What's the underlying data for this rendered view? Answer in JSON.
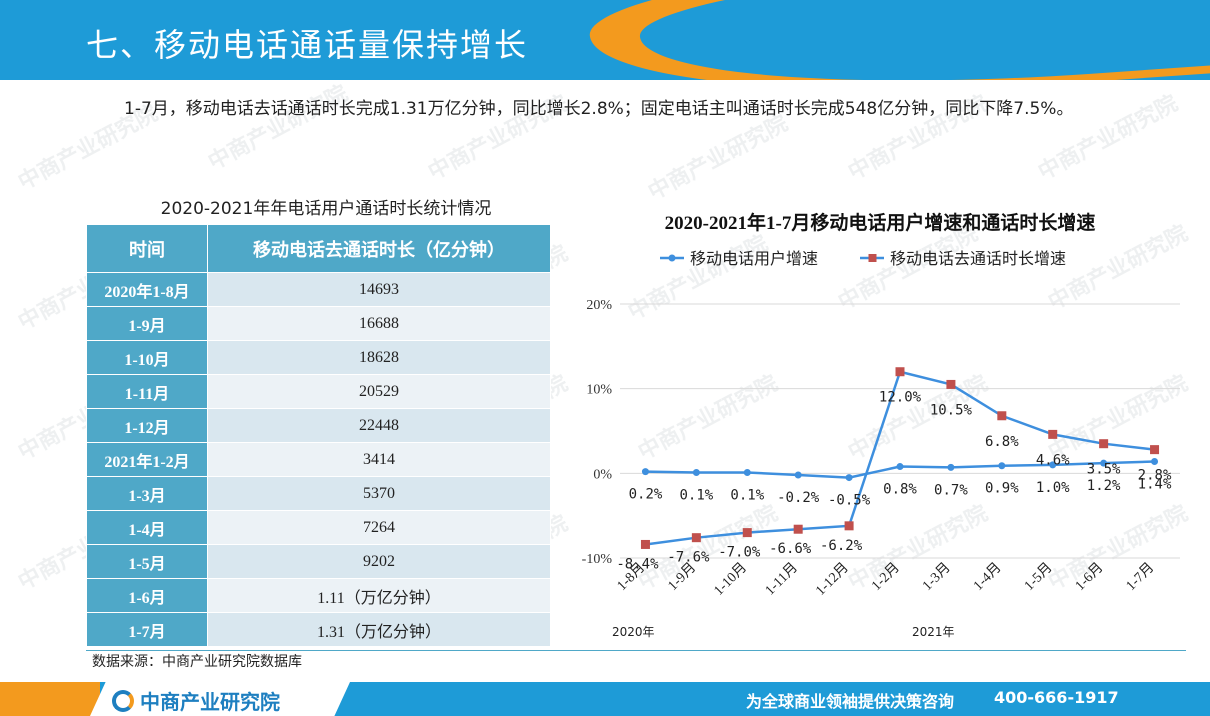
{
  "header": {
    "title": "七、移动电话通话量保持增长"
  },
  "intro": {
    "text": "1-7月，移动电话去话通话时长完成1.31万亿分钟，同比增长2.8%；固定电话主叫通话时长完成548亿分钟，同比下降7.5%。"
  },
  "table": {
    "title": "2020-2021年年电话用户通话时长统计情况",
    "headers": [
      "时间",
      "移动电话去通话时长（亿分钟）"
    ],
    "rows": [
      [
        "2020年1-8月",
        "14693"
      ],
      [
        "1-9月",
        "16688"
      ],
      [
        "1-10月",
        "18628"
      ],
      [
        "1-11月",
        "20529"
      ],
      [
        "1-12月",
        "22448"
      ],
      [
        "2021年1-2月",
        "3414"
      ],
      [
        "1-3月",
        "5370"
      ],
      [
        "1-4月",
        "7264"
      ],
      [
        "1-5月",
        "9202"
      ],
      [
        "1-6月",
        "1.11（万亿分钟）"
      ],
      [
        "1-7月",
        "1.31（万亿分钟）"
      ]
    ]
  },
  "source": "数据来源：中商产业研究院数据库",
  "footer": {
    "logo": "中商产业研究院",
    "slogan": "为全球商业领袖提供决策咨询",
    "phone": "400-666-1917"
  },
  "watermark": "中商产业研究院",
  "chart_data": {
    "type": "line",
    "title": "2020-2021年1-7月移动电话用户增速和通话时长增速",
    "categories": [
      "1-8月",
      "1-9月",
      "1-10月",
      "1-11月",
      "1-12月",
      "1-2月",
      "1-3月",
      "1-4月",
      "1-5月",
      "1-6月",
      "1-7月"
    ],
    "group_labels": [
      {
        "label": "2020年",
        "start": 0
      },
      {
        "label": "2021年",
        "start": 5
      }
    ],
    "yticks": [
      "-10%",
      "0%",
      "10%",
      "20%"
    ],
    "ylim": [
      -10,
      20
    ],
    "legend_position": "top",
    "grid": true,
    "series": [
      {
        "name": "移动电话用户增速",
        "color": "#3e8fde",
        "marker": "circle",
        "values": [
          0.2,
          0.1,
          0.1,
          -0.2,
          -0.5,
          0.8,
          0.7,
          0.9,
          1.0,
          1.2,
          1.4
        ],
        "labels": [
          "0.2%",
          "0.1%",
          "0.1%",
          "-0.2%",
          "-0.5%",
          "0.8%",
          "0.7%",
          "0.9%",
          "1.0%",
          "1.2%",
          "1.4%"
        ]
      },
      {
        "name": "移动电话去通话时长增速",
        "color": "#c0504d",
        "line_color": "#3e8fde",
        "marker": "square",
        "values": [
          -8.4,
          -7.6,
          -7.0,
          -6.6,
          -6.2,
          12.0,
          10.5,
          6.8,
          4.6,
          3.5,
          2.8
        ],
        "labels": [
          "-8.4%",
          "-7.6%",
          "-7.0%",
          "-6.6%",
          "-6.2%",
          "12.0%",
          "10.5%",
          "6.8%",
          "4.6%",
          "3.5%",
          "2.8%"
        ]
      }
    ]
  }
}
